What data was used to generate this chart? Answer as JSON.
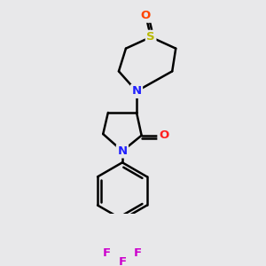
{
  "background_color": "#e8e8ea",
  "bond_color": "#000000",
  "bond_width": 1.8,
  "atom_colors": {
    "N": "#2020ff",
    "O_carbonyl": "#ff2020",
    "O_sulfoxide": "#ff4400",
    "S": "#b8b800",
    "F": "#cc00cc",
    "C": "#000000"
  },
  "figsize": [
    3.0,
    3.0
  ],
  "dpi": 100
}
